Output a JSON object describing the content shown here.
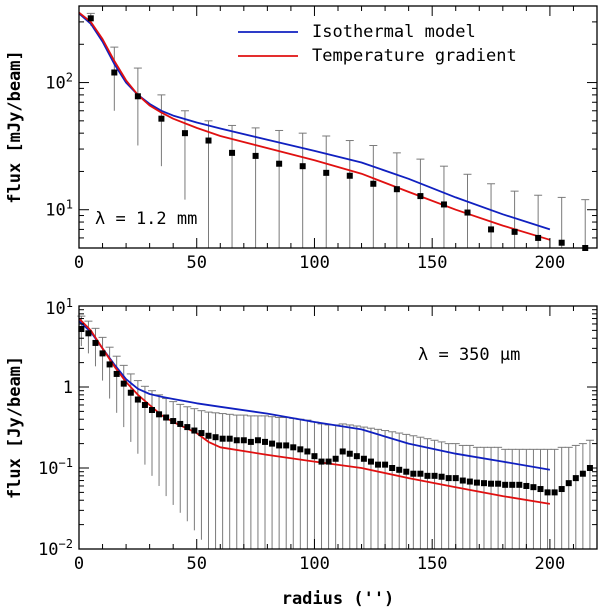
{
  "chart_data": [
    {
      "type": "line",
      "panel": "top",
      "yscale": "log",
      "xlim": [
        0,
        220
      ],
      "ylim": [
        5,
        400
      ],
      "xlabel": "",
      "ylabel": "flux [mJy/beam]",
      "annotation": "λ = 1.2 mm",
      "x_ticks": [
        "0",
        "50",
        "100",
        "150",
        "200"
      ],
      "y_tick_labels": [
        {
          "value": 10,
          "base": "10",
          "exp": "1"
        },
        {
          "value": 100,
          "base": "10",
          "exp": "2"
        }
      ],
      "legend": {
        "position": "top-right",
        "entries": [
          {
            "name": "Isothermal model",
            "color": "#1020c0"
          },
          {
            "name": "Temperature gradient",
            "color": "#e01010"
          }
        ]
      },
      "series": [
        {
          "name": "Isothermal model",
          "color": "#1020c0",
          "x": [
            0,
            5,
            10,
            15,
            20,
            25,
            30,
            35,
            40,
            50,
            60,
            80,
            100,
            120,
            140,
            160,
            180,
            200
          ],
          "y": [
            350,
            290,
            210,
            140,
            100,
            80,
            68,
            60,
            55,
            48.5,
            43.5,
            35.5,
            29,
            23.5,
            17.5,
            12.5,
            9.2,
            7
          ]
        },
        {
          "name": "Temperature gradient",
          "color": "#e01010",
          "x": [
            0,
            5,
            10,
            15,
            20,
            25,
            30,
            35,
            40,
            50,
            60,
            80,
            100,
            120,
            140,
            160,
            180,
            200
          ],
          "y": [
            355,
            300,
            220,
            148,
            104,
            80,
            66,
            58,
            52,
            44,
            38,
            30.5,
            24.5,
            19.2,
            13.8,
            10,
            7.5,
            5.8
          ]
        },
        {
          "name": "Observed",
          "color": "#000000",
          "x": [
            5,
            15,
            25,
            35,
            45,
            55,
            65,
            75,
            85,
            95,
            105,
            115,
            125,
            135,
            145,
            155,
            165,
            175,
            185,
            195,
            205,
            215
          ],
          "y": [
            320,
            120,
            78,
            52,
            40,
            35,
            28,
            26.5,
            23,
            22,
            19.5,
            18.5,
            16,
            14.5,
            12.8,
            11,
            9.5,
            7,
            6.7,
            6,
            5.5,
            5
          ],
          "err_upper": [
            350,
            190,
            130,
            80,
            60,
            50,
            46,
            44,
            42,
            40,
            38,
            35,
            32,
            28,
            25,
            22,
            19,
            16,
            14,
            13,
            12.5,
            12
          ],
          "err_lower": [
            280,
            60,
            32,
            22,
            12,
            5,
            5,
            5,
            5,
            5,
            5,
            5,
            5,
            5,
            5,
            5,
            5,
            5,
            5,
            5,
            5,
            5
          ]
        }
      ]
    },
    {
      "type": "line",
      "panel": "bottom",
      "yscale": "log",
      "xlim": [
        0,
        220
      ],
      "ylim": [
        0.01,
        10
      ],
      "xlabel": "radius ('')",
      "ylabel": "flux [Jy/beam]",
      "annotation": "λ = 350 μm",
      "x_ticks": [
        "0",
        "50",
        "100",
        "150",
        "200"
      ],
      "y_tick_labels": [
        {
          "value": 0.01,
          "base": "10",
          "exp": "−2"
        },
        {
          "value": 0.1,
          "base": "10",
          "exp": "−1"
        },
        {
          "value": 1,
          "base": "1",
          "exp": ""
        },
        {
          "value": 10,
          "base": "10",
          "exp": "1"
        }
      ],
      "series": [
        {
          "name": "Isothermal model",
          "color": "#1020c0",
          "x": [
            0,
            5,
            10,
            15,
            20,
            25,
            30,
            35,
            40,
            50,
            60,
            80,
            100,
            120,
            140,
            160,
            180,
            200
          ],
          "y": [
            6.5,
            4.8,
            3.0,
            1.9,
            1.25,
            0.95,
            0.82,
            0.76,
            0.71,
            0.63,
            0.57,
            0.47,
            0.37,
            0.3,
            0.2,
            0.15,
            0.12,
            0.095
          ]
        },
        {
          "name": "Temperature gradient",
          "color": "#e01010",
          "x": [
            0,
            5,
            10,
            15,
            20,
            25,
            30,
            35,
            40,
            50,
            55,
            60,
            80,
            100,
            120,
            140,
            160,
            180,
            200
          ],
          "y": [
            7.0,
            5.0,
            3.0,
            1.8,
            1.15,
            0.8,
            0.6,
            0.45,
            0.37,
            0.27,
            0.21,
            0.18,
            0.145,
            0.12,
            0.1,
            0.075,
            0.058,
            0.045,
            0.036
          ]
        },
        {
          "name": "Observed",
          "color": "#000000",
          "x": [
            1,
            4,
            7,
            10,
            13,
            16,
            19,
            22,
            25,
            28,
            31,
            34,
            37,
            40,
            43,
            46,
            49,
            52,
            55,
            58,
            61,
            64,
            67,
            70,
            73,
            76,
            79,
            82,
            85,
            88,
            91,
            94,
            97,
            100,
            103,
            106,
            109,
            112,
            115,
            118,
            121,
            124,
            127,
            130,
            133,
            136,
            139,
            142,
            145,
            148,
            151,
            154,
            157,
            160,
            163,
            166,
            169,
            172,
            175,
            178,
            181,
            184,
            187,
            190,
            193,
            196,
            199,
            202,
            205,
            208,
            211,
            214,
            217
          ],
          "y": [
            5.2,
            4.6,
            3.5,
            2.6,
            1.9,
            1.45,
            1.1,
            0.85,
            0.7,
            0.6,
            0.52,
            0.46,
            0.42,
            0.38,
            0.35,
            0.32,
            0.29,
            0.27,
            0.25,
            0.24,
            0.23,
            0.23,
            0.22,
            0.22,
            0.21,
            0.22,
            0.21,
            0.2,
            0.19,
            0.19,
            0.18,
            0.17,
            0.16,
            0.14,
            0.12,
            0.12,
            0.13,
            0.16,
            0.15,
            0.14,
            0.13,
            0.12,
            0.11,
            0.11,
            0.1,
            0.095,
            0.09,
            0.085,
            0.085,
            0.08,
            0.08,
            0.078,
            0.075,
            0.075,
            0.07,
            0.068,
            0.066,
            0.065,
            0.064,
            0.064,
            0.062,
            0.062,
            0.062,
            0.06,
            0.058,
            0.055,
            0.05,
            0.05,
            0.055,
            0.065,
            0.075,
            0.085,
            0.1
          ],
          "err_upper": [
            7.5,
            6.5,
            5.3,
            4.1,
            3.1,
            2.4,
            1.85,
            1.45,
            1.2,
            1.02,
            0.9,
            0.8,
            0.72,
            0.66,
            0.61,
            0.57,
            0.54,
            0.51,
            0.49,
            0.48,
            0.47,
            0.46,
            0.45,
            0.45,
            0.44,
            0.44,
            0.44,
            0.43,
            0.42,
            0.42,
            0.41,
            0.4,
            0.39,
            0.37,
            0.35,
            0.34,
            0.34,
            0.35,
            0.34,
            0.33,
            0.32,
            0.31,
            0.3,
            0.29,
            0.28,
            0.27,
            0.26,
            0.25,
            0.24,
            0.23,
            0.22,
            0.21,
            0.2,
            0.2,
            0.19,
            0.19,
            0.18,
            0.18,
            0.18,
            0.18,
            0.17,
            0.17,
            0.17,
            0.17,
            0.17,
            0.17,
            0.17,
            0.17,
            0.18,
            0.18,
            0.19,
            0.2,
            0.22
          ],
          "err_lower": [
            3.2,
            2.6,
            1.8,
            1.2,
            0.72,
            0.48,
            0.32,
            0.21,
            0.15,
            0.11,
            0.08,
            0.06,
            0.045,
            0.035,
            0.028,
            0.022,
            0.017,
            0.013,
            0.01,
            0.01,
            0.01,
            0.01,
            0.01,
            0.01,
            0.01,
            0.01,
            0.01,
            0.01,
            0.01,
            0.01,
            0.01,
            0.01,
            0.01,
            0.01,
            0.01,
            0.01,
            0.01,
            0.01,
            0.01,
            0.01,
            0.01,
            0.01,
            0.01,
            0.01,
            0.01,
            0.01,
            0.01,
            0.01,
            0.01,
            0.01,
            0.01,
            0.01,
            0.01,
            0.01,
            0.01,
            0.01,
            0.01,
            0.01,
            0.01,
            0.01,
            0.01,
            0.01,
            0.01,
            0.01,
            0.01,
            0.01,
            0.01,
            0.01,
            0.01,
            0.01,
            0.01,
            0.01,
            0.01
          ]
        }
      ]
    }
  ]
}
